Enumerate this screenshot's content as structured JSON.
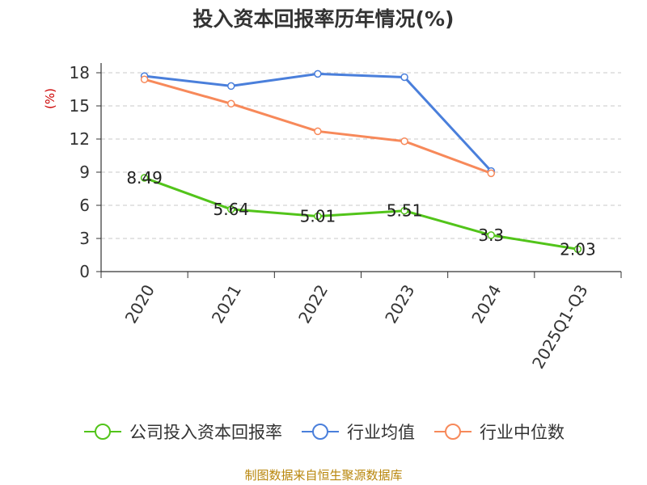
{
  "chart_data": {
    "type": "line",
    "title": "投入资本回报率历年情况(%)",
    "ylabel": "(%)",
    "xlabel": "",
    "categories": [
      "2020",
      "2021",
      "2022",
      "2023",
      "2024",
      "2025Q1-Q3"
    ],
    "ylim": [
      0,
      18
    ],
    "yticks": [
      0,
      3,
      6,
      9,
      12,
      15,
      18
    ],
    "grid": true,
    "legend_position": "bottom",
    "series": [
      {
        "name": "公司投入资本回报率",
        "color": "#52c41a",
        "values": [
          8.49,
          5.64,
          5.01,
          5.51,
          3.3,
          2.03
        ],
        "labels": [
          "8.49",
          "5.64",
          "5.01",
          "5.51",
          "3.3",
          "2.03"
        ],
        "show_labels": true
      },
      {
        "name": "行业均值",
        "color": "#4a7fdb",
        "values": [
          17.7,
          16.8,
          17.9,
          17.6,
          9.1,
          null
        ],
        "show_labels": false
      },
      {
        "name": "行业中位数",
        "color": "#f7895a",
        "values": [
          17.4,
          15.2,
          12.7,
          11.8,
          8.9,
          null
        ],
        "show_labels": false
      }
    ]
  },
  "source": "制图数据来自恒生聚源数据库"
}
